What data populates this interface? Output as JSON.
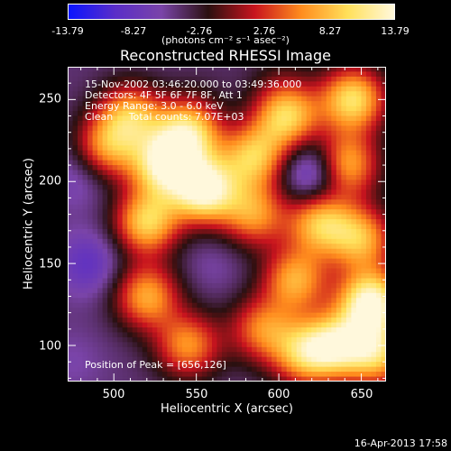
{
  "colorbar": {
    "ticks": [
      "-13.79",
      "-8.27",
      "-2.76",
      "2.76",
      "8.27",
      "13.79"
    ],
    "units": "(photons cm⁻² s⁻¹ asec⁻²)",
    "colors": [
      "#0a14ff",
      "#5a2dc8",
      "#7a44a8",
      "#2a1010",
      "#c8141e",
      "#ff8c1e",
      "#ffe05a",
      "#fff8dc"
    ]
  },
  "chart_data": {
    "type": "heatmap",
    "title": "Reconstructed RHESSI Image",
    "xlabel": "Heliocentric X (arcsec)",
    "ylabel": "Heliocentric Y (arcsec)",
    "xlim": [
      472,
      665
    ],
    "ylim": [
      78,
      270
    ],
    "xticks": [
      "500",
      "550",
      "600",
      "650"
    ],
    "yticks": [
      "100",
      "150",
      "200",
      "250"
    ],
    "value_range": [
      -13.79,
      13.79
    ],
    "peak": [
      656,
      126
    ],
    "sources": [
      {
        "x": 555,
        "y": 195,
        "value": 13.5
      },
      {
        "x": 530,
        "y": 210,
        "value": 11
      },
      {
        "x": 520,
        "y": 175,
        "value": 9
      },
      {
        "x": 545,
        "y": 230,
        "value": 10
      },
      {
        "x": 510,
        "y": 240,
        "value": 7
      },
      {
        "x": 495,
        "y": 220,
        "value": 6
      },
      {
        "x": 520,
        "y": 130,
        "value": 7
      },
      {
        "x": 545,
        "y": 100,
        "value": 6
      },
      {
        "x": 585,
        "y": 215,
        "value": 8
      },
      {
        "x": 585,
        "y": 180,
        "value": 6
      },
      {
        "x": 605,
        "y": 240,
        "value": 9
      },
      {
        "x": 645,
        "y": 250,
        "value": 10
      },
      {
        "x": 640,
        "y": 210,
        "value": 9
      },
      {
        "x": 625,
        "y": 175,
        "value": 8
      },
      {
        "x": 650,
        "y": 165,
        "value": 7
      },
      {
        "x": 610,
        "y": 140,
        "value": 7
      },
      {
        "x": 656,
        "y": 126,
        "value": 13.79
      },
      {
        "x": 635,
        "y": 100,
        "value": 9
      },
      {
        "x": 615,
        "y": 95,
        "value": 7
      },
      {
        "x": 590,
        "y": 110,
        "value": 5
      },
      {
        "x": 660,
        "y": 95,
        "value": 8
      },
      {
        "x": 623,
        "y": 205,
        "value": -13
      },
      {
        "x": 480,
        "y": 205,
        "value": -8
      },
      {
        "x": 485,
        "y": 150,
        "value": -9
      },
      {
        "x": 560,
        "y": 150,
        "value": -6
      },
      {
        "x": 475,
        "y": 90,
        "value": -6
      },
      {
        "x": 555,
        "y": 258,
        "value": -4
      },
      {
        "x": 600,
        "y": 265,
        "value": -3
      }
    ]
  },
  "annotations": {
    "time": "15-Nov-2002 03:46:20.000 to 03:49:36.000",
    "detectors": "Detectors: 4F 5F 6F 7F 8F, Att 1",
    "energy": "Energy Range: 3.0 - 6.0 keV",
    "algorithm": "Clean     Total counts: 7.07E+03",
    "peak": "Position of Peak = [656,126]"
  },
  "footer": "16-Apr-2013 17:58"
}
